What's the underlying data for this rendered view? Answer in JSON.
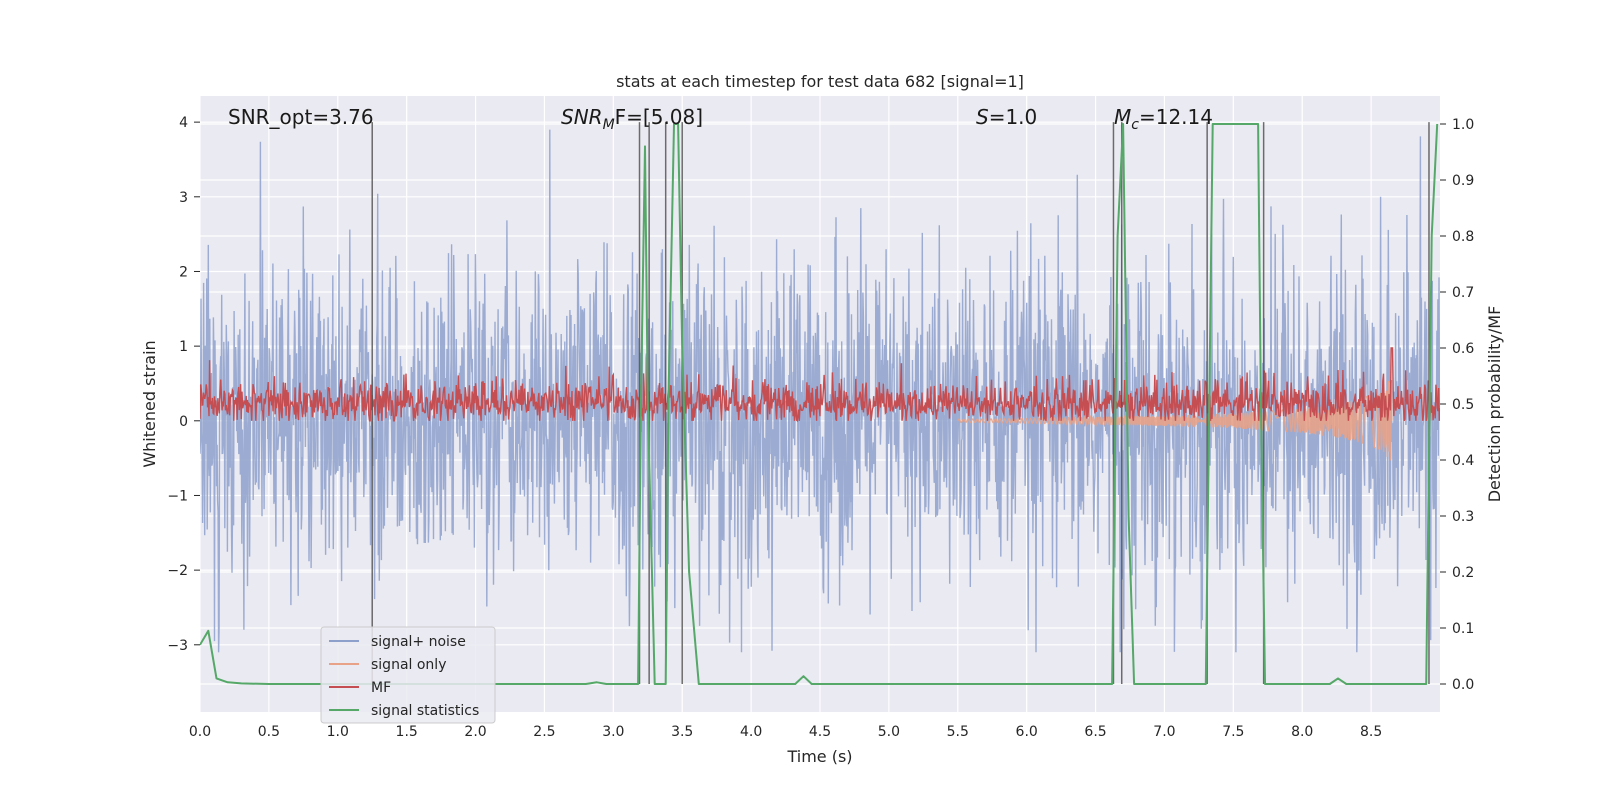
{
  "chart_data": {
    "type": "line",
    "title": "stats at each timestep for test data 682 [signal=1]",
    "xlabel": "Time (s)",
    "ylabel": "Whitened strain",
    "ylabel_right": "Detection probability/MF",
    "xlim": [
      0.0,
      9.0
    ],
    "ylim": [
      -3.9,
      4.35
    ],
    "ylim_right": [
      -0.05,
      1.05
    ],
    "x_ticks": [
      "0.0",
      "0.5",
      "1.0",
      "1.5",
      "2.0",
      "2.5",
      "3.0",
      "3.5",
      "4.0",
      "4.5",
      "5.0",
      "5.5",
      "6.0",
      "6.5",
      "7.0",
      "7.5",
      "8.0",
      "8.5"
    ],
    "y_ticks": [
      "4",
      "3",
      "2",
      "1",
      "0",
      "−1",
      "−2",
      "−3"
    ],
    "y_right_ticks": [
      "1.0",
      "0.9",
      "0.8",
      "0.7",
      "0.6",
      "0.5",
      "0.4",
      "0.3",
      "0.2",
      "0.1",
      "0.0"
    ],
    "grid": true,
    "legend_position": "lower-left",
    "annotations": {
      "snr_opt": "SNR_opt=3.76",
      "snr_mf_main": "SNR",
      "snr_mf_sub": "M",
      "snr_mf_rest": "F=[5.08]",
      "s_main": "S",
      "s_rest": "=1.0",
      "mc_main": "M",
      "mc_sub": "c",
      "mc_rest": "=12.14"
    },
    "series": [
      {
        "name": "signal+ noise",
        "color": "#8da0cb",
        "kind": "noise",
        "amplitude_range": [
          -3.1,
          3.9
        ]
      },
      {
        "name": "signal only",
        "color": "#e8a287",
        "kind": "chirp",
        "x": [
          5.5,
          6.0,
          6.5,
          7.0,
          7.5,
          8.0,
          8.3,
          8.5,
          8.6,
          8.65
        ],
        "envelope": [
          0.02,
          0.03,
          0.05,
          0.07,
          0.1,
          0.16,
          0.24,
          0.34,
          0.45,
          0.62
        ]
      },
      {
        "name": "MF",
        "color": "#c44e52",
        "kind": "mf",
        "baseline_right": 0.5,
        "amplitude_range": [
          0.47,
          0.58
        ],
        "peak": {
          "x": 8.65,
          "y_right": 0.6
        }
      },
      {
        "name": "signal statistics",
        "color": "#55a868",
        "kind": "step",
        "x": [
          0.0,
          0.06,
          0.12,
          0.2,
          0.3,
          0.5,
          2.8,
          2.88,
          2.95,
          3.18,
          3.2,
          3.23,
          3.25,
          3.3,
          3.32,
          3.38,
          3.4,
          3.44,
          3.47,
          3.5,
          3.55,
          3.62,
          4.32,
          4.38,
          4.44,
          6.62,
          6.66,
          6.7,
          6.74,
          6.78,
          7.3,
          7.35,
          7.68,
          7.7,
          7.73,
          8.2,
          8.26,
          8.32,
          8.9,
          8.94,
          8.98
        ],
        "y": [
          0.07,
          0.095,
          0.01,
          0.003,
          0.001,
          0.0,
          0.0,
          0.003,
          0.0,
          0.0,
          0.5,
          0.96,
          0.5,
          0.0,
          0.0,
          0.0,
          0.5,
          1.0,
          1.0,
          0.6,
          0.2,
          0.0,
          0.0,
          0.014,
          0.0,
          0.0,
          0.8,
          1.0,
          0.3,
          0.0,
          0.0,
          1.0,
          1.0,
          0.5,
          0.0,
          0.0,
          0.01,
          0.0,
          0.0,
          0.8,
          1.0
        ]
      },
      {
        "name": "",
        "color": "#555555",
        "kind": "vlines",
        "x": [
          1.25,
          3.19,
          3.26,
          3.38,
          3.5,
          6.63,
          6.69,
          7.31,
          7.72,
          8.92
        ],
        "y_top": 4.0
      }
    ]
  }
}
